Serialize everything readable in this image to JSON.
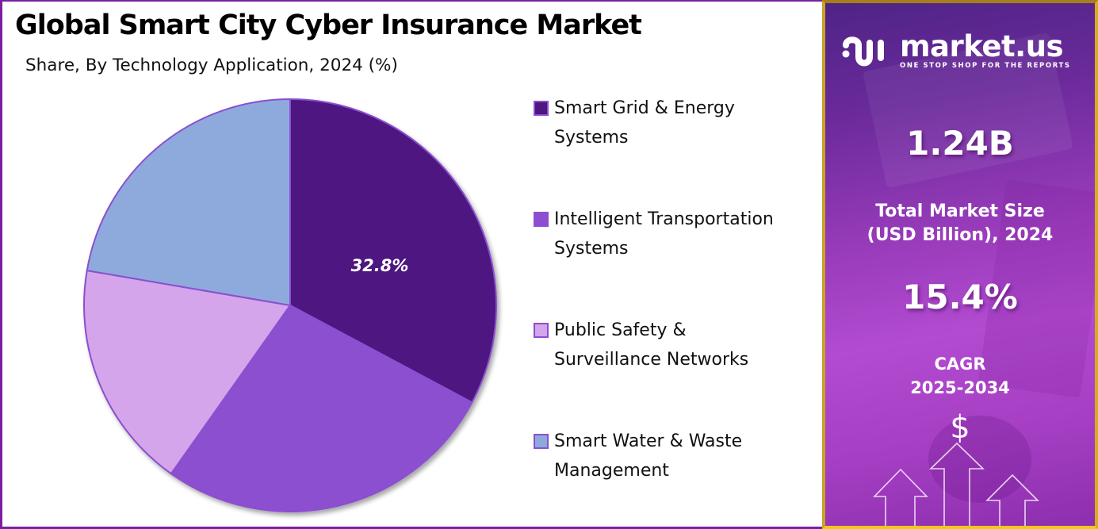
{
  "header": {
    "title": "Global Smart City Cyber Insurance Market",
    "subtitle": "Share, By Technology Application, 2024 (%)"
  },
  "chart_data": {
    "type": "pie",
    "title": "Global Smart City Cyber Insurance Market",
    "subtitle": "Share, By Technology Application, 2024 (%)",
    "categories": [
      "Smart Grid & Energy Systems",
      "Intelligent Transportation Systems",
      "Public Safety & Surveillance Networks",
      "Smart Water & Waste Management"
    ],
    "values": [
      32.8,
      27.0,
      17.9,
      22.3
    ],
    "colors": [
      "#4d1680",
      "#8b4fd0",
      "#d4a5eb",
      "#8eaadc"
    ],
    "data_labels": [
      "32.8%",
      "",
      "",
      ""
    ],
    "start_angle": "12 o'clock, clockwise",
    "legend_position": "right",
    "unit": "%"
  },
  "legend": {
    "items": [
      {
        "line1": "Smart Grid & Energy",
        "line2": "Systems",
        "color": "#4d1680"
      },
      {
        "line1": "Intelligent Transportation",
        "line2": "Systems",
        "color": "#8b4fd0"
      },
      {
        "line1": "Public Safety &",
        "line2": "Surveillance Networks",
        "color": "#d4a5eb"
      },
      {
        "line1": "Smart Water & Waste",
        "line2": "Management",
        "color": "#8eaadc"
      }
    ]
  },
  "pie_label": "32.8%",
  "sidebar": {
    "brand_name": "market.us",
    "brand_tagline": "ONE STOP SHOP FOR THE REPORTS",
    "market_size_value": "1.24B",
    "market_size_caption_line1": "Total Market Size",
    "market_size_caption_line2": "(USD Billion), 2024",
    "cagr_value": "15.4%",
    "cagr_caption_line1": "CAGR",
    "cagr_caption_line2": "2025-2034",
    "dollar_symbol": "$",
    "icon": "growth-arrows-icon"
  },
  "colors": {
    "left_border": "#7b1fa2",
    "right_border": "#c9a227",
    "panel_purple_dark": "#4e2486",
    "panel_purple_light": "#b24bd0"
  }
}
